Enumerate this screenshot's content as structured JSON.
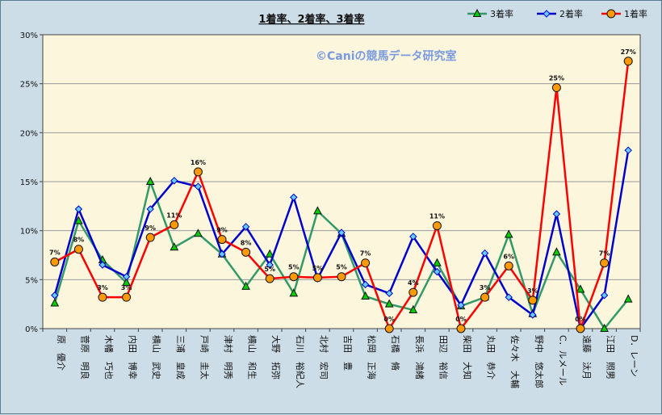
{
  "chart_data": {
    "type": "line",
    "title": "1着率、2着率、3着率",
    "watermark": "©Caniの競馬データ研究室",
    "categories": [
      "原　優介",
      "菅原　明良",
      "木幡　巧也",
      "内田　博幸",
      "横山　武史",
      "三浦　皇成",
      "戸崎　圭太",
      "津村　明秀",
      "横山　和生",
      "大野　拓弥",
      "石川　裕紀人",
      "北村　宏司",
      "吉田　豊",
      "松岡　正海",
      "石橋　脩",
      "長浜　鴻緒",
      "田辺　裕信",
      "柴田　大知",
      "丸田　恭介",
      "佐々木　大輔",
      "野中　悠太郎",
      "C．ルメール",
      "遠藤　汰月",
      "江田　照男",
      "D．レーン"
    ],
    "ylim": [
      0,
      30
    ],
    "yticks": [
      "0%",
      "5%",
      "10%",
      "15%",
      "20%",
      "25%",
      "30%"
    ],
    "legend_position": "top-right",
    "grid": true,
    "series": [
      {
        "name": "3着率",
        "color": "#339966",
        "marker": "triangle",
        "marker_fill": "#00cc00",
        "values": [
          2.6,
          11.0,
          7.0,
          4.7,
          15.0,
          8.3,
          9.7,
          7.6,
          4.3,
          7.6,
          3.6,
          12.0,
          9.7,
          3.3,
          2.5,
          1.9,
          6.7,
          2.3,
          3.2,
          9.6,
          1.5,
          7.8,
          4.0,
          0.0,
          3.0
        ],
        "labels": []
      },
      {
        "name": "2着率",
        "color": "#0000cc",
        "marker": "diamond",
        "marker_fill": "#66ccff",
        "values": [
          3.4,
          12.2,
          6.5,
          5.3,
          12.2,
          15.1,
          14.5,
          7.6,
          10.4,
          6.5,
          13.4,
          5.1,
          9.8,
          4.5,
          3.6,
          9.4,
          5.8,
          2.4,
          7.7,
          3.2,
          1.4,
          11.7,
          0.0,
          3.4,
          18.2
        ],
        "labels": []
      },
      {
        "name": "1着率",
        "color": "#ff0000",
        "marker": "circle",
        "marker_fill": "#ff9900",
        "values": [
          6.8,
          8.1,
          3.2,
          3.2,
          9.3,
          10.6,
          16.0,
          9.1,
          7.8,
          5.1,
          5.3,
          5.2,
          5.3,
          6.7,
          0.0,
          3.7,
          10.5,
          0.0,
          3.2,
          6.4,
          2.9,
          24.6,
          0.0,
          6.7,
          27.3
        ],
        "labels": [
          "7%",
          "8%",
          "3%",
          "3%",
          "9%",
          "11%",
          "16%",
          "9%",
          "8%",
          "5%",
          "5%",
          "5%",
          "5%",
          "7%",
          "0%",
          "4%",
          "11%",
          "0%",
          "3%",
          "6%",
          "3%",
          "25%",
          "0%",
          "7%",
          "27%"
        ]
      }
    ]
  }
}
